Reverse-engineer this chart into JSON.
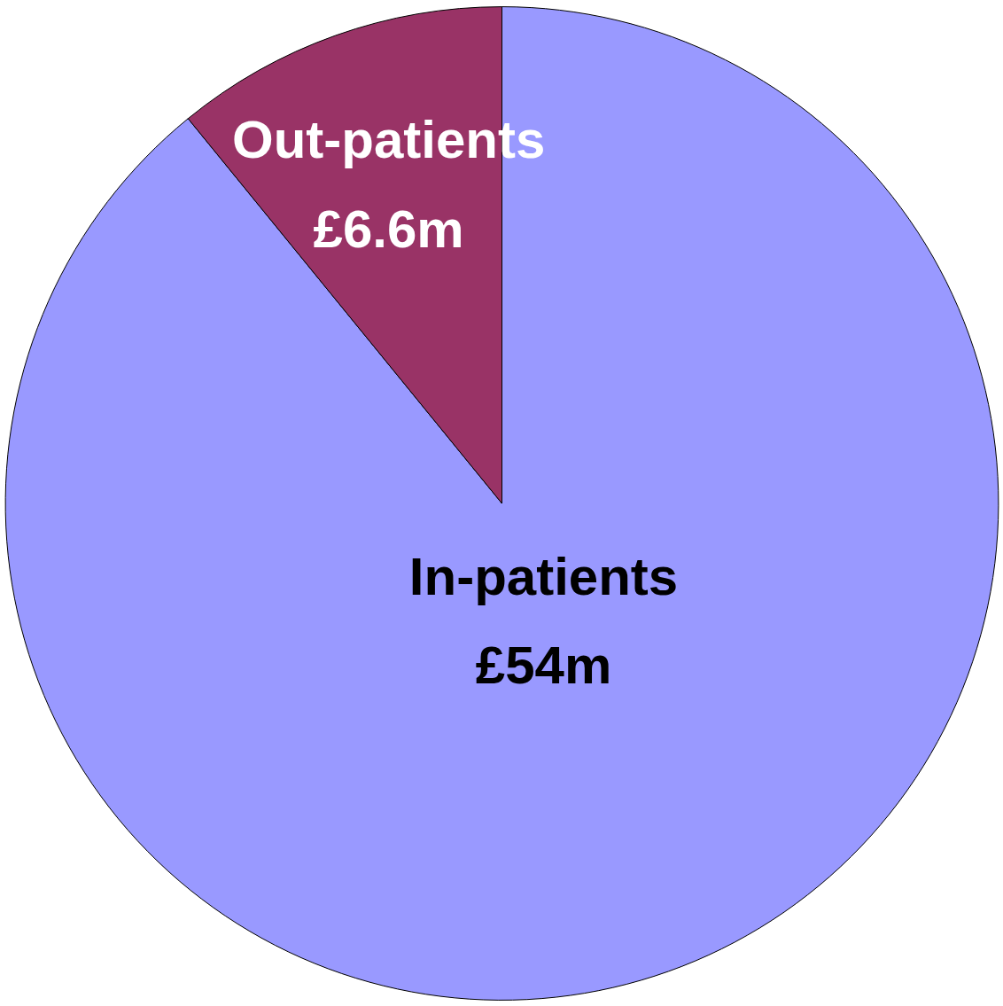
{
  "chart_data": {
    "type": "pie",
    "categories": [
      "In-patients",
      "Out-patients"
    ],
    "values": [
      54,
      6.6
    ],
    "value_labels": [
      "£54m",
      "£6.6m"
    ],
    "colors": [
      "#9999ff",
      "#993366"
    ]
  }
}
